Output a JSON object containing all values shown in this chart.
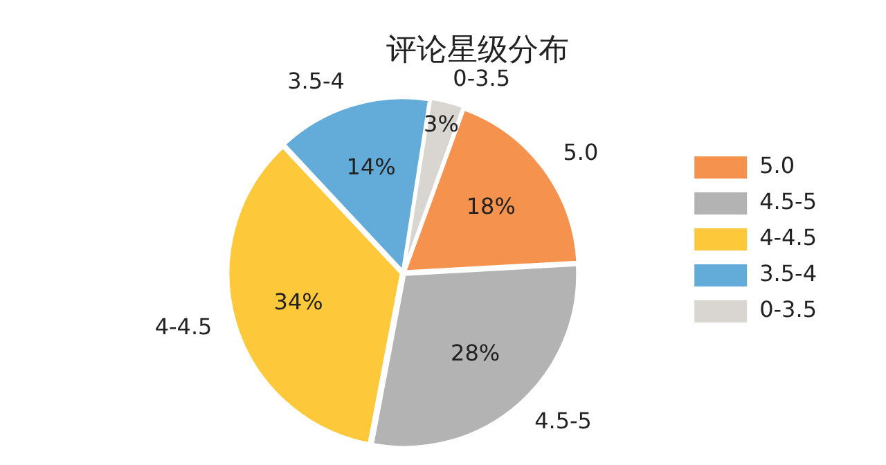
{
  "chart_data": {
    "type": "pie",
    "title": "评论星级分布",
    "categories": [
      "5.0",
      "4.5-5",
      "4-4.5",
      "3.5-4",
      "0-3.5"
    ],
    "values": [
      18,
      28,
      34,
      14,
      3
    ],
    "value_labels": [
      "18%",
      "28%",
      "34%",
      "14%",
      "3%"
    ],
    "colors": [
      "#f5924e",
      "#b3b3b3",
      "#fdc93a",
      "#63acd9",
      "#d9d5d1"
    ],
    "legend": "right"
  }
}
